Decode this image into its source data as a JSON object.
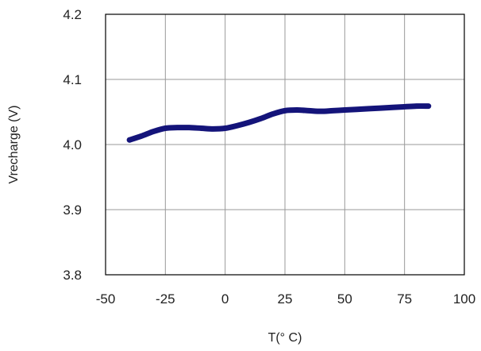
{
  "chart_data": {
    "type": "line",
    "title": "",
    "xlabel": "T(° C)",
    "ylabel": "Vrecharge (V)",
    "xlim": [
      -50,
      100
    ],
    "ylim": [
      3.8,
      4.2
    ],
    "x_ticks": [
      "-50",
      "-25",
      "0",
      "25",
      "50",
      "75",
      "100"
    ],
    "y_ticks": [
      "4.2",
      "4.1",
      "4.0",
      "3.9",
      "3.8"
    ],
    "grid": true,
    "legend": "none",
    "series": [
      {
        "color": "#14147a",
        "x": [
          -40,
          -35,
          -30,
          -25,
          -20,
          -15,
          -10,
          -5,
          0,
          5,
          10,
          15,
          20,
          25,
          30,
          35,
          40,
          45,
          50,
          55,
          60,
          65,
          70,
          75,
          80,
          85
        ],
        "y": [
          4.007,
          4.013,
          4.02,
          4.025,
          4.026,
          4.026,
          4.025,
          4.024,
          4.025,
          4.029,
          4.034,
          4.04,
          4.047,
          4.052,
          4.053,
          4.052,
          4.051,
          4.052,
          4.053,
          4.054,
          4.055,
          4.056,
          4.057,
          4.058,
          4.059,
          4.059
        ]
      }
    ]
  },
  "colors": {
    "grid": "#999999",
    "frame": "#000000",
    "line": "#14147a"
  }
}
